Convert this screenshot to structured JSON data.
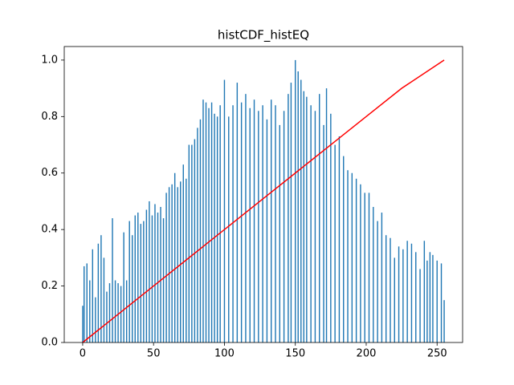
{
  "chart_data": {
    "type": "bar",
    "title": "histCDF_histEQ",
    "xlim": [
      -13,
      268
    ],
    "ylim": [
      0,
      1.048
    ],
    "xticks": [
      0,
      50,
      100,
      150,
      200,
      250
    ],
    "yticks": [
      {
        "value": 0,
        "label": "0.0"
      },
      0.2,
      0.4,
      0.6,
      0.8,
      {
        "value": 1.0,
        "label": "1.0"
      }
    ],
    "grid": false,
    "series": [
      {
        "type": "bar",
        "color": "#1f77b4",
        "x": [
          0,
          1,
          3,
          5,
          7,
          9,
          11,
          13,
          15,
          17,
          19,
          21,
          23,
          25,
          27,
          29,
          31,
          33,
          35,
          37,
          39,
          41,
          43,
          45,
          47,
          49,
          51,
          53,
          55,
          57,
          59,
          61,
          63,
          65,
          67,
          69,
          71,
          73,
          75,
          77,
          79,
          81,
          83,
          85,
          87,
          89,
          91,
          93,
          95,
          97,
          100,
          103,
          106,
          109,
          112,
          115,
          118,
          121,
          124,
          127,
          130,
          133,
          136,
          139,
          142,
          145,
          147,
          150,
          152,
          154,
          156,
          158,
          161,
          164,
          167,
          170,
          172,
          175,
          178,
          181,
          184,
          187,
          190,
          193,
          196,
          199,
          202,
          205,
          208,
          211,
          214,
          217,
          220,
          223,
          226,
          229,
          232,
          235,
          238,
          241,
          243,
          245,
          247,
          250,
          253,
          255
        ],
        "values": [
          0.13,
          0.27,
          0.28,
          0.22,
          0.33,
          0.16,
          0.35,
          0.38,
          0.3,
          0.18,
          0.21,
          0.44,
          0.22,
          0.21,
          0.2,
          0.39,
          0.22,
          0.43,
          0.38,
          0.45,
          0.46,
          0.42,
          0.43,
          0.47,
          0.5,
          0.45,
          0.49,
          0.46,
          0.48,
          0.44,
          0.53,
          0.55,
          0.56,
          0.6,
          0.55,
          0.57,
          0.63,
          0.58,
          0.7,
          0.7,
          0.72,
          0.76,
          0.79,
          0.86,
          0.85,
          0.83,
          0.85,
          0.81,
          0.8,
          0.84,
          0.93,
          0.8,
          0.84,
          0.92,
          0.85,
          0.88,
          0.83,
          0.86,
          0.82,
          0.84,
          0.79,
          0.86,
          0.84,
          0.77,
          0.82,
          0.88,
          0.92,
          1.0,
          0.96,
          0.93,
          0.89,
          0.87,
          0.84,
          0.82,
          0.88,
          0.77,
          0.9,
          0.81,
          0.7,
          0.73,
          0.66,
          0.61,
          0.6,
          0.58,
          0.56,
          0.53,
          0.53,
          0.48,
          0.43,
          0.46,
          0.38,
          0.37,
          0.3,
          0.34,
          0.33,
          0.36,
          0.35,
          0.32,
          0.26,
          0.36,
          0.29,
          0.32,
          0.31,
          0.29,
          0.28,
          0.15
        ]
      },
      {
        "type": "line",
        "color": "#ff0000",
        "x": [
          0,
          25,
          50,
          75,
          100,
          125,
          150,
          175,
          200,
          225,
          255
        ],
        "values": [
          0,
          0.1,
          0.2,
          0.3,
          0.4,
          0.5,
          0.6,
          0.7,
          0.8,
          0.9,
          1.0
        ]
      }
    ]
  }
}
